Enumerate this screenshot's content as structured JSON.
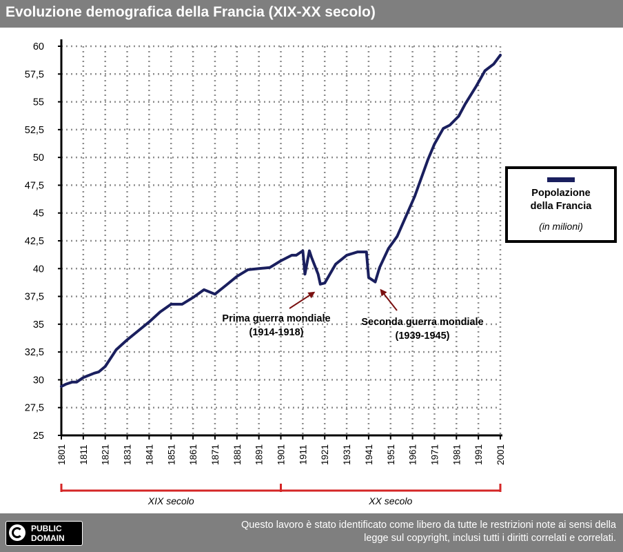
{
  "title": "Evoluzione demografica della Francia (XIX-XX secolo)",
  "footer": {
    "badge_line1": "PUBLIC",
    "badge_line2": "DOMAIN",
    "text_line1": "Questo lavoro è stato identificato come libero da tutte le restrizioni note ai sensi della",
    "text_line2": "legge sul copyright, inclusi tutti i diritti correlati e correlati."
  },
  "colors": {
    "line": "#1a1f5e",
    "arrow": "#7a1010",
    "century_bracket": "#d42626",
    "bar": "#7f7f7f"
  },
  "chart_data": {
    "type": "line",
    "title": "Evoluzione demografica della Francia (XIX-XX secolo)",
    "xlabel": "",
    "ylabel": "",
    "xlim": [
      1801,
      2001
    ],
    "ylim": [
      25,
      60
    ],
    "grid": true,
    "legend_position": "right",
    "x_ticks": [
      "1801",
      "1811",
      "1821",
      "1831",
      "1841",
      "1851",
      "1861",
      "1871",
      "1881",
      "1891",
      "1901",
      "1911",
      "1921",
      "1931",
      "1941",
      "1951",
      "1961",
      "1971",
      "1981",
      "1991",
      "2001"
    ],
    "y_ticks": [
      "25",
      "27,5",
      "30",
      "32,5",
      "35",
      "37,5",
      "40",
      "42,5",
      "45",
      "47,5",
      "50",
      "52,5",
      "55",
      "57,5",
      "60"
    ],
    "legend": {
      "line1": "Popolazione",
      "line2": "della Francia",
      "unit": "(in milioni)"
    },
    "series": [
      {
        "name": "Popolazione della Francia",
        "x": [
          1801,
          1803,
          1806,
          1808,
          1811,
          1816,
          1818,
          1821,
          1826,
          1831,
          1836,
          1841,
          1846,
          1851,
          1856,
          1861,
          1866,
          1871,
          1876,
          1881,
          1886,
          1891,
          1896,
          1901,
          1906,
          1908,
          1911,
          1912,
          1914,
          1915,
          1918,
          1919,
          1921,
          1926,
          1931,
          1936,
          1940,
          1941,
          1944,
          1946,
          1950,
          1954,
          1962,
          1968,
          1971,
          1975,
          1978,
          1982,
          1985,
          1990,
          1994,
          1998,
          2001
        ],
        "y": [
          29.4,
          29.6,
          29.8,
          29.8,
          30.2,
          30.6,
          30.7,
          31.2,
          32.7,
          33.6,
          34.4,
          35.2,
          36.1,
          36.8,
          36.8,
          37.4,
          38.1,
          37.7,
          38.5,
          39.3,
          39.9,
          40.0,
          40.1,
          40.7,
          41.2,
          41.2,
          41.6,
          39.5,
          41.6,
          41.0,
          39.5,
          38.6,
          38.7,
          40.4,
          41.2,
          41.5,
          41.5,
          39.2,
          38.8,
          40.1,
          41.8,
          42.9,
          46.5,
          49.8,
          51.2,
          52.6,
          52.9,
          53.7,
          54.8,
          56.4,
          57.8,
          58.4,
          59.2
        ]
      }
    ],
    "annotations": [
      {
        "line1": "Prima guerra mondiale",
        "line2": "(1914-1918)",
        "x": 1918,
        "y": 38.6
      },
      {
        "line1": "Seconda guerra mondiale",
        "line2": "(1939-1945)",
        "x": 1945,
        "y": 38.7
      }
    ],
    "century_labels": [
      {
        "label": "XIX secolo",
        "from": 1801,
        "to": 1901
      },
      {
        "label": "XX secolo",
        "from": 1901,
        "to": 2001
      }
    ]
  }
}
